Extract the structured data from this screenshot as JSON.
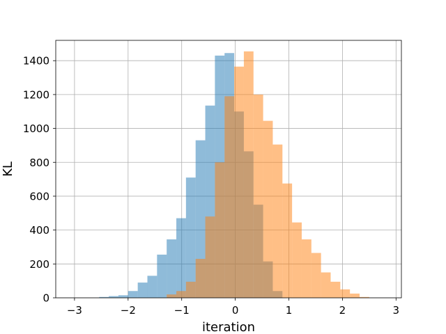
{
  "chart_data": {
    "type": "bar",
    "title": "",
    "xlabel": "iteration",
    "ylabel": "KL",
    "xlim": [
      -3.35,
      3.1
    ],
    "ylim": [
      0,
      1520
    ],
    "xticks": [
      -3,
      -2,
      -1,
      0,
      1,
      2,
      3
    ],
    "xtick_labels": [
      "−3",
      "−2",
      "−1",
      "0",
      "1",
      "2",
      "3"
    ],
    "yticks": [
      0,
      200,
      400,
      600,
      800,
      1000,
      1200,
      1400
    ],
    "ytick_labels": [
      "0",
      "200",
      "400",
      "600",
      "800",
      "1000",
      "1200",
      "1400"
    ],
    "grid": true,
    "legend": "none",
    "series": [
      {
        "color": "#1f77b4",
        "opacity": 0.5,
        "bins": [
          {
            "x0": -2.54,
            "x1": -2.36,
            "count": 5
          },
          {
            "x0": -2.36,
            "x1": -2.18,
            "count": 10
          },
          {
            "x0": -2.18,
            "x1": -2.0,
            "count": 15
          },
          {
            "x0": -2.0,
            "x1": -1.82,
            "count": 40
          },
          {
            "x0": -1.82,
            "x1": -1.64,
            "count": 90
          },
          {
            "x0": -1.64,
            "x1": -1.46,
            "count": 130
          },
          {
            "x0": -1.46,
            "x1": -1.28,
            "count": 255
          },
          {
            "x0": -1.28,
            "x1": -1.1,
            "count": 345
          },
          {
            "x0": -1.1,
            "x1": -0.92,
            "count": 470
          },
          {
            "x0": -0.92,
            "x1": -0.74,
            "count": 710
          },
          {
            "x0": -0.74,
            "x1": -0.56,
            "count": 930
          },
          {
            "x0": -0.56,
            "x1": -0.38,
            "count": 1135
          },
          {
            "x0": -0.38,
            "x1": -0.2,
            "count": 1430
          },
          {
            "x0": -0.2,
            "x1": -0.02,
            "count": 1445
          },
          {
            "x0": -0.02,
            "x1": 0.16,
            "count": 1100
          },
          {
            "x0": 0.16,
            "x1": 0.34,
            "count": 865
          },
          {
            "x0": 0.34,
            "x1": 0.52,
            "count": 550
          },
          {
            "x0": 0.52,
            "x1": 0.7,
            "count": 215
          },
          {
            "x0": 0.7,
            "x1": 0.88,
            "count": 40
          }
        ]
      },
      {
        "color": "#ff7f0e",
        "opacity": 0.5,
        "bins": [
          {
            "x0": -1.28,
            "x1": -1.1,
            "count": 20
          },
          {
            "x0": -1.1,
            "x1": -0.92,
            "count": 40
          },
          {
            "x0": -0.92,
            "x1": -0.74,
            "count": 95
          },
          {
            "x0": -0.74,
            "x1": -0.56,
            "count": 230
          },
          {
            "x0": -0.56,
            "x1": -0.38,
            "count": 480
          },
          {
            "x0": -0.38,
            "x1": -0.2,
            "count": 800
          },
          {
            "x0": -0.2,
            "x1": -0.02,
            "count": 1190
          },
          {
            "x0": -0.02,
            "x1": 0.16,
            "count": 1365
          },
          {
            "x0": 0.16,
            "x1": 0.34,
            "count": 1455
          },
          {
            "x0": 0.34,
            "x1": 0.52,
            "count": 1200
          },
          {
            "x0": 0.52,
            "x1": 0.7,
            "count": 1045
          },
          {
            "x0": 0.7,
            "x1": 0.88,
            "count": 905
          },
          {
            "x0": 0.88,
            "x1": 1.06,
            "count": 675
          },
          {
            "x0": 1.06,
            "x1": 1.24,
            "count": 445
          },
          {
            "x0": 1.24,
            "x1": 1.42,
            "count": 345
          },
          {
            "x0": 1.42,
            "x1": 1.6,
            "count": 265
          },
          {
            "x0": 1.6,
            "x1": 1.78,
            "count": 150
          },
          {
            "x0": 1.78,
            "x1": 1.96,
            "count": 95
          },
          {
            "x0": 1.96,
            "x1": 2.14,
            "count": 50
          },
          {
            "x0": 2.14,
            "x1": 2.32,
            "count": 25
          },
          {
            "x0": 2.32,
            "x1": 2.5,
            "count": 5
          }
        ]
      }
    ]
  }
}
